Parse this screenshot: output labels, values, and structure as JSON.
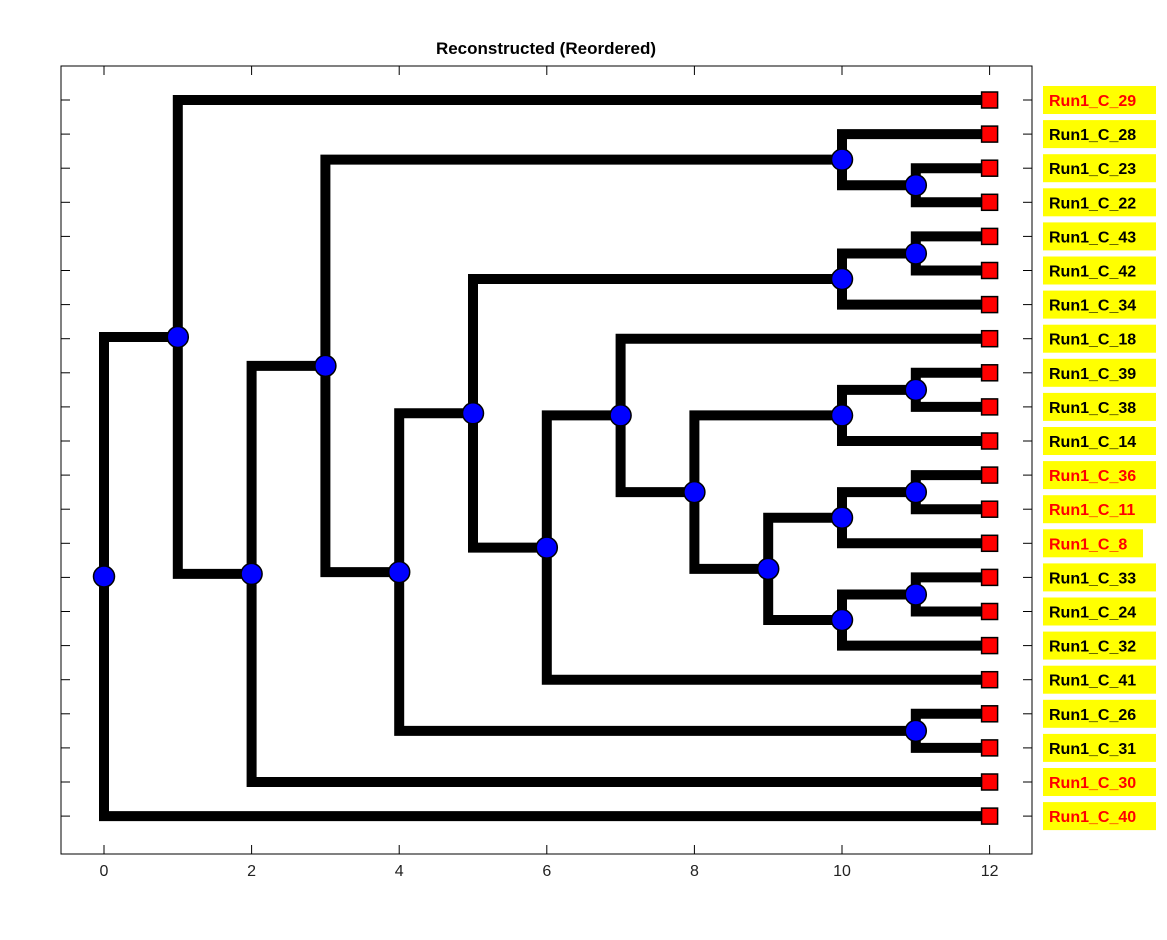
{
  "title": "Reconstructed (Reordered)",
  "colors": {
    "branch": "#000000",
    "internal_node": "#0000ff",
    "leaf_marker": "#ff0000",
    "label_bg": "#ffff00",
    "label_text_default": "#000000",
    "label_text_highlight": "#ff0000"
  },
  "chart_data": {
    "type": "dendrogram",
    "xlim": [
      -0.6,
      12.6
    ],
    "x_ticks": [
      0,
      2,
      4,
      6,
      8,
      10,
      12
    ],
    "x_tick_labels": [
      "0",
      "2",
      "4",
      "6",
      "8",
      "10",
      "12"
    ],
    "leaf_depth": 12,
    "leaves": [
      {
        "label": "Run1_C_29",
        "highlight": true
      },
      {
        "label": "Run1_C_28",
        "highlight": false
      },
      {
        "label": "Run1_C_23",
        "highlight": false
      },
      {
        "label": "Run1_C_22",
        "highlight": false
      },
      {
        "label": "Run1_C_43",
        "highlight": false
      },
      {
        "label": "Run1_C_42",
        "highlight": false
      },
      {
        "label": "Run1_C_34",
        "highlight": false
      },
      {
        "label": "Run1_C_18",
        "highlight": false
      },
      {
        "label": "Run1_C_39",
        "highlight": false
      },
      {
        "label": "Run1_C_38",
        "highlight": false
      },
      {
        "label": "Run1_C_14",
        "highlight": false
      },
      {
        "label": "Run1_C_36",
        "highlight": true
      },
      {
        "label": "Run1_C_11",
        "highlight": true
      },
      {
        "label": "Run1_C_8",
        "highlight": true
      },
      {
        "label": "Run1_C_33",
        "highlight": false
      },
      {
        "label": "Run1_C_24",
        "highlight": false
      },
      {
        "label": "Run1_C_32",
        "highlight": false
      },
      {
        "label": "Run1_C_41",
        "highlight": false
      },
      {
        "label": "Run1_C_26",
        "highlight": false
      },
      {
        "label": "Run1_C_31",
        "highlight": false
      },
      {
        "label": "Run1_C_30",
        "highlight": true
      },
      {
        "label": "Run1_C_40",
        "highlight": true
      }
    ],
    "internal_nodes": [
      {
        "id": "A",
        "depth": 11,
        "children": [
          "L:2",
          "L:3"
        ]
      },
      {
        "id": "B",
        "depth": 10,
        "children": [
          "L:1",
          "N:A"
        ]
      },
      {
        "id": "C",
        "depth": 11,
        "children": [
          "L:4",
          "L:5"
        ]
      },
      {
        "id": "D",
        "depth": 10,
        "children": [
          "N:C",
          "L:6"
        ]
      },
      {
        "id": "E",
        "depth": 11,
        "children": [
          "L:8",
          "L:9"
        ]
      },
      {
        "id": "F",
        "depth": 10,
        "children": [
          "N:E",
          "L:10"
        ]
      },
      {
        "id": "G",
        "depth": 11,
        "children": [
          "L:11",
          "L:12"
        ]
      },
      {
        "id": "H",
        "depth": 10,
        "children": [
          "N:G",
          "L:13"
        ]
      },
      {
        "id": "I",
        "depth": 11,
        "children": [
          "L:14",
          "L:15"
        ]
      },
      {
        "id": "J",
        "depth": 10,
        "children": [
          "N:I",
          "L:16"
        ]
      },
      {
        "id": "K",
        "depth": 9,
        "children": [
          "N:H",
          "N:J"
        ]
      },
      {
        "id": "M",
        "depth": 8,
        "children": [
          "N:F",
          "N:K"
        ]
      },
      {
        "id": "N",
        "depth": 7,
        "children": [
          "L:7",
          "N:M"
        ]
      },
      {
        "id": "O",
        "depth": 6,
        "children": [
          "N:N",
          "L:17"
        ]
      },
      {
        "id": "P",
        "depth": 5,
        "children": [
          "N:D",
          "N:O"
        ]
      },
      {
        "id": "Q",
        "depth": 11,
        "children": [
          "L:18",
          "L:19"
        ]
      },
      {
        "id": "R",
        "depth": 4,
        "children": [
          "N:P",
          "N:Q"
        ]
      },
      {
        "id": "S",
        "depth": 3,
        "children": [
          "N:B",
          "N:R"
        ]
      },
      {
        "id": "T",
        "depth": 2,
        "children": [
          "N:S",
          "L:20"
        ]
      },
      {
        "id": "U",
        "depth": 1,
        "children": [
          "L:0",
          "N:T"
        ]
      },
      {
        "id": "V",
        "depth": 0,
        "children": [
          "N:U",
          "L:21"
        ]
      }
    ]
  }
}
